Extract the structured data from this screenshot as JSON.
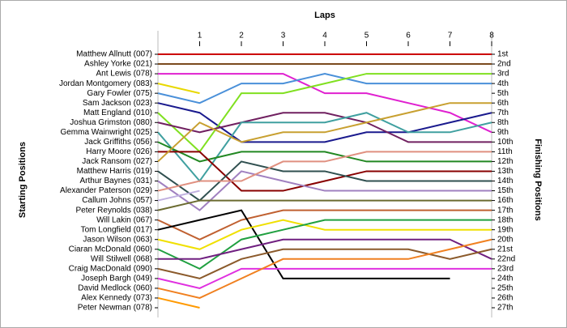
{
  "chart_data": {
    "type": "lap",
    "title": "Laps",
    "y_label_left": "Starting Positions",
    "y_label_right": "Finishing Positions",
    "x": [
      0,
      1,
      2,
      3,
      4,
      5,
      6,
      7,
      8
    ],
    "xlim": [
      0,
      8
    ],
    "xticks": [
      1,
      2,
      3,
      4,
      5,
      6,
      7,
      8
    ],
    "ylim": [
      1,
      27
    ],
    "finishing_labels": [
      "1st",
      "2nd",
      "3rd",
      "4th",
      "5th",
      "6th",
      "7th",
      "8th",
      "9th",
      "10th",
      "11th",
      "12th",
      "13th",
      "14th",
      "15th",
      "16th",
      "17th",
      "18th",
      "19th",
      "20th",
      "21st",
      "22nd",
      "23rd",
      "24th",
      "25th",
      "26th",
      "27th"
    ],
    "series": [
      {
        "name": "Matthew Allnutt (007)",
        "color": "#cc0000",
        "values": [
          1,
          1,
          1,
          1,
          1,
          1,
          1,
          1,
          1
        ]
      },
      {
        "name": "Ashley Yorke (021)",
        "color": "#7a4a1e",
        "values": [
          2,
          2,
          2,
          2,
          2,
          2,
          2,
          2,
          2
        ]
      },
      {
        "name": "Ant Lewis (078)",
        "color": "#e020d0",
        "values": [
          3,
          3,
          3,
          3,
          5,
          5,
          6,
          7,
          9
        ]
      },
      {
        "name": "Jordan Montgomery (083)",
        "color": "#e8d800",
        "values": [
          4,
          5,
          null,
          null,
          null,
          null,
          null,
          null,
          null
        ]
      },
      {
        "name": "Gary Fowler (075)",
        "color": "#4a90d9",
        "values": [
          5,
          6,
          4,
          4,
          3,
          4,
          4,
          4,
          4
        ]
      },
      {
        "name": "Sam Jackson (023)",
        "color": "#1a1a8e",
        "values": [
          6,
          7,
          10,
          10,
          10,
          9,
          9,
          8,
          7
        ]
      },
      {
        "name": "Matt England (010)",
        "color": "#80e020",
        "values": [
          7,
          11,
          5,
          5,
          4,
          3,
          3,
          3,
          3
        ]
      },
      {
        "name": "Joshua Grimston (080)",
        "color": "#702060",
        "values": [
          8,
          9,
          8,
          7,
          7,
          8,
          10,
          10,
          10
        ]
      },
      {
        "name": "Gemma Wainwright (025)",
        "color": "#40a0a0",
        "values": [
          9,
          14,
          8,
          8,
          8,
          7,
          9,
          9,
          8
        ]
      },
      {
        "name": "Jack Griffiths (056)",
        "color": "#228822",
        "values": [
          10,
          12,
          11,
          11,
          11,
          12,
          12,
          12,
          12
        ]
      },
      {
        "name": "Harry Moore (026)",
        "color": "#880000",
        "values": [
          11,
          11,
          15,
          15,
          14,
          13,
          13,
          13,
          13
        ]
      },
      {
        "name": "Jack Ransom (027)",
        "color": "#c8a030",
        "values": [
          12,
          8,
          10,
          9,
          9,
          8,
          7,
          6,
          6
        ]
      },
      {
        "name": "Matthew Harris (019)",
        "color": "#2f4f4f",
        "values": [
          13,
          16,
          12,
          13,
          13,
          14,
          14,
          14,
          14
        ]
      },
      {
        "name": "Arthur Baynes (031)",
        "color": "#a080c0",
        "values": [
          14,
          17,
          13,
          14,
          15,
          15,
          15,
          15,
          15
        ]
      },
      {
        "name": "Alexander Paterson (029)",
        "color": "#e09080",
        "values": [
          15,
          14,
          14,
          12,
          12,
          11,
          11,
          11,
          11
        ]
      },
      {
        "name": "Callum Johns (057)",
        "color": "#c0b0e0",
        "values": [
          16,
          15,
          null,
          null,
          null,
          null,
          null,
          null,
          null
        ]
      },
      {
        "name": "Peter Reynolds (038)",
        "color": "#6b6b30",
        "values": [
          17,
          16,
          16,
          16,
          16,
          16,
          16,
          16,
          16
        ]
      },
      {
        "name": "Will Lakin (067)",
        "color": "#c06030",
        "values": [
          18,
          20,
          18,
          17,
          17,
          17,
          17,
          17,
          17
        ]
      },
      {
        "name": "Tom Longfield (017)",
        "color": "#000000",
        "values": [
          19,
          18,
          17,
          24,
          24,
          24,
          24,
          24,
          null
        ]
      },
      {
        "name": "Jason Wilson (063)",
        "color": "#f0e000",
        "values": [
          20,
          21,
          19,
          18,
          19,
          19,
          19,
          19,
          19
        ]
      },
      {
        "name": "Ciaran McDonald (060)",
        "color": "#20a040",
        "values": [
          21,
          23,
          20,
          19,
          18,
          18,
          18,
          18,
          18
        ]
      },
      {
        "name": "Will Stilwell (068)",
        "color": "#702080",
        "values": [
          22,
          22,
          21,
          20,
          20,
          20,
          20,
          20,
          22
        ]
      },
      {
        "name": "Craig MacDonald (090)",
        "color": "#8b5a2b",
        "values": [
          23,
          24,
          22,
          21,
          21,
          21,
          21,
          22,
          21
        ]
      },
      {
        "name": "Joseph Bargh (049)",
        "color": "#e030e0",
        "values": [
          24,
          25,
          23,
          23,
          23,
          23,
          23,
          23,
          23
        ]
      },
      {
        "name": "David Medlock (060)",
        "color": "#f08020",
        "values": [
          25,
          26,
          24,
          22,
          22,
          22,
          22,
          21,
          20
        ]
      },
      {
        "name": "Alex Kennedy (073)",
        "color": "#ff9900",
        "values": [
          26,
          27,
          null,
          null,
          null,
          null,
          null,
          null,
          null
        ]
      },
      {
        "name": "Peter Newman (078)",
        "color": "#888888",
        "values": [
          27,
          null,
          null,
          null,
          null,
          null,
          null,
          null,
          null
        ]
      }
    ]
  }
}
